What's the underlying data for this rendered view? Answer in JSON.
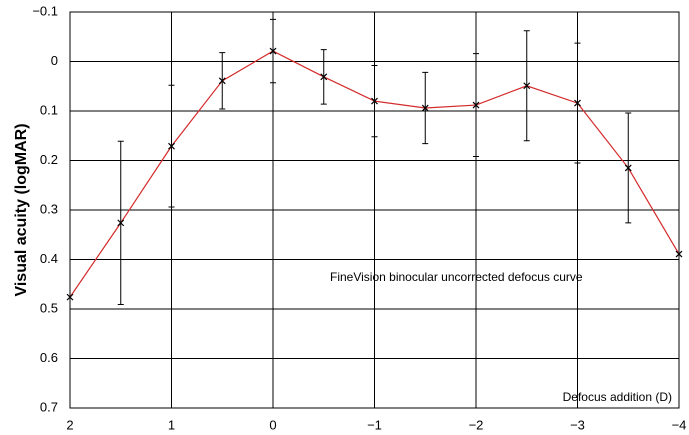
{
  "chart_data": {
    "type": "line",
    "y_label": "Visual acuity (logMAR)",
    "x_label": "Defocus addition (D)",
    "annotation": "FineVision binocular uncorrected defocus curve",
    "x": [
      2,
      1.5,
      1,
      0.5,
      0,
      -0.5,
      -1,
      -1.5,
      -2,
      -2.5,
      -3,
      -3.5,
      -4
    ],
    "series": [
      {
        "color": "#d42a2a",
        "values": [
          0.476,
          0.326,
          0.171,
          0.039,
          -0.021,
          0.031,
          0.08,
          0.094,
          0.088,
          0.049,
          0.084,
          0.215,
          0.389
        ],
        "errors": [
          null,
          0.165,
          0.123,
          0.057,
          0.064,
          0.055,
          0.072,
          0.072,
          0.104,
          0.111,
          0.121,
          0.111,
          null
        ]
      }
    ],
    "xlim": [
      2,
      -4
    ],
    "xticks": [
      2,
      1,
      0,
      {
        "value": -1,
        "label": "−1"
      },
      {
        "value": -2,
        "label": "−2"
      },
      {
        "value": -3,
        "label": "−3"
      },
      {
        "value": -4,
        "label": "−4"
      }
    ],
    "ylim": [
      -0.1,
      0.7
    ],
    "yticks": [
      {
        "value": -0.1,
        "label": "−0.1"
      },
      0,
      0.1,
      0.2,
      0.3,
      0.4,
      0.5,
      0.6,
      0.7
    ],
    "y_inverted": true,
    "grid": true
  }
}
